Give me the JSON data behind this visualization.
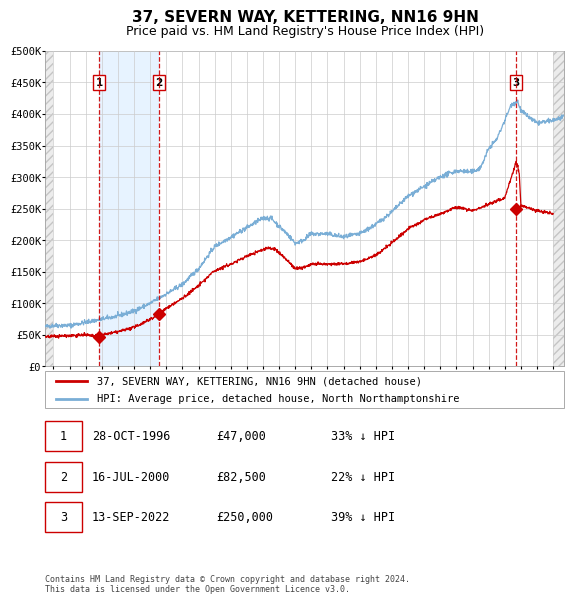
{
  "title": "37, SEVERN WAY, KETTERING, NN16 9HN",
  "subtitle": "Price paid vs. HM Land Registry's House Price Index (HPI)",
  "title_fontsize": 11,
  "subtitle_fontsize": 9,
  "ylim": [
    0,
    500000
  ],
  "yticks": [
    0,
    50000,
    100000,
    150000,
    200000,
    250000,
    300000,
    350000,
    400000,
    450000,
    500000
  ],
  "ytick_labels": [
    "£0",
    "£50K",
    "£100K",
    "£150K",
    "£200K",
    "£250K",
    "£300K",
    "£350K",
    "£400K",
    "£450K",
    "£500K"
  ],
  "xlim_start": 1993.5,
  "xlim_end": 2025.7,
  "sale_dates": [
    1996.83,
    2000.54,
    2022.71
  ],
  "sale_prices": [
    47000,
    82500,
    250000
  ],
  "sale_labels": [
    "1",
    "2",
    "3"
  ],
  "red_line_color": "#cc0000",
  "blue_line_color": "#7aaed6",
  "shade_color": "#ddeeff",
  "grid_color": "#cccccc",
  "background_color": "#ffffff",
  "legend_entries": [
    "37, SEVERN WAY, KETTERING, NN16 9HN (detached house)",
    "HPI: Average price, detached house, North Northamptonshire"
  ],
  "table_rows": [
    [
      "1",
      "28-OCT-1996",
      "£47,000",
      "33% ↓ HPI"
    ],
    [
      "2",
      "16-JUL-2000",
      "£82,500",
      "22% ↓ HPI"
    ],
    [
      "3",
      "13-SEP-2022",
      "£250,000",
      "39% ↓ HPI"
    ]
  ],
  "footnote": "Contains HM Land Registry data © Crown copyright and database right 2024.\nThis data is licensed under the Open Government Licence v3.0."
}
